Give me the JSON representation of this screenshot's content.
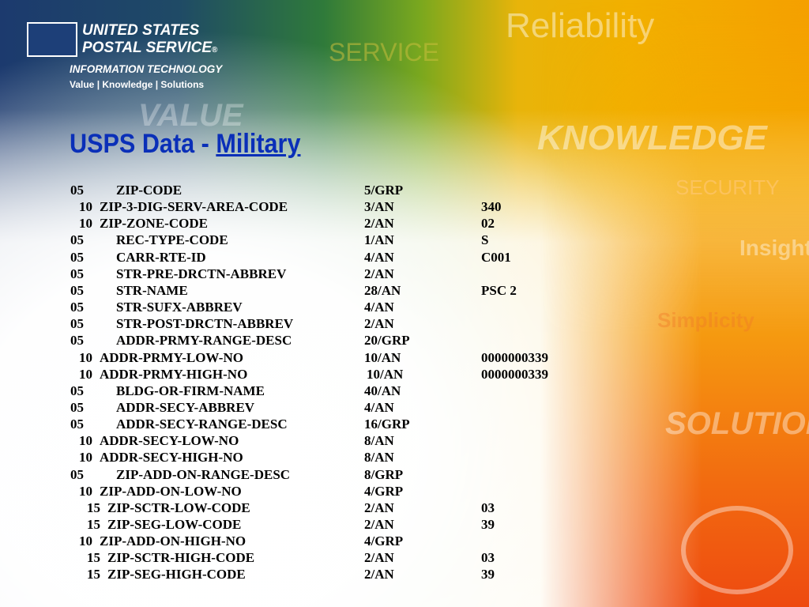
{
  "header": {
    "logo_line1": "UNITED STATES",
    "logo_line2": "POSTAL SERVICE",
    "registered_mark": "®",
    "division": "INFORMATION TECHNOLOGY",
    "tagline": "Value | Knowledge | Solutions"
  },
  "watermarks": [
    "Reliability",
    "SERVICE",
    "VALUE",
    "KNOWLEDGE",
    "SECURITY",
    "Insight",
    "Simplicity",
    "SOLUTIONS"
  ],
  "title": {
    "prefix": "USPS Data - ",
    "link": "Military"
  },
  "colors": {
    "title": "#0a2fb8",
    "text": "#000000"
  },
  "rows": [
    {
      "level": "05",
      "name": "ZIP-CODE",
      "size": "5/GRP",
      "value": ""
    },
    {
      "level": "10",
      "name": "ZIP-3-DIG-SERV-AREA-CODE",
      "size": "3/AN",
      "value": "340"
    },
    {
      "level": "10",
      "name": "ZIP-ZONE-CODE",
      "size": "2/AN",
      "value": "02"
    },
    {
      "level": "05",
      "name": "REC-TYPE-CODE",
      "size": "1/AN",
      "value": "S"
    },
    {
      "level": "05",
      "name": "CARR-RTE-ID",
      "size": "4/AN",
      "value": "C001"
    },
    {
      "level": "05",
      "name": "STR-PRE-DRCTN-ABBREV",
      "size": "2/AN",
      "value": ""
    },
    {
      "level": "05",
      "name": "STR-NAME",
      "size": "28/AN",
      "value": "PSC 2"
    },
    {
      "level": "05",
      "name": "STR-SUFX-ABBREV",
      "size": "4/AN",
      "value": ""
    },
    {
      "level": "05",
      "name": "STR-POST-DRCTN-ABBREV",
      "size": "2/AN",
      "value": ""
    },
    {
      "level": "05",
      "name": "ADDR-PRMY-RANGE-DESC",
      "size": "20/GRP",
      "value": ""
    },
    {
      "level": "10",
      "name": "ADDR-PRMY-LOW-NO",
      "size": "10/AN",
      "value": "0000000339"
    },
    {
      "level": "10",
      "name": "ADDR-PRMY-HIGH-NO",
      "size": "10/AN",
      "value": "0000000339"
    },
    {
      "level": "05",
      "name": "BLDG-OR-FIRM-NAME",
      "size": "40/AN",
      "value": ""
    },
    {
      "level": "05",
      "name": "ADDR-SECY-ABBREV",
      "size": "4/AN",
      "value": ""
    },
    {
      "level": "05",
      "name": "ADDR-SECY-RANGE-DESC",
      "size": "16/GRP",
      "value": ""
    },
    {
      "level": "10",
      "name": "ADDR-SECY-LOW-NO",
      "size": "8/AN",
      "value": ""
    },
    {
      "level": "10",
      "name": "ADDR-SECY-HIGH-NO",
      "size": "8/AN",
      "value": ""
    },
    {
      "level": "05",
      "name": "ZIP-ADD-ON-RANGE-DESC",
      "size": "8/GRP",
      "value": ""
    },
    {
      "level": "10",
      "name": "ZIP-ADD-ON-LOW-NO",
      "size": "4/GRP",
      "value": ""
    },
    {
      "level": "15",
      "name": "ZIP-SCTR-LOW-CODE",
      "size": "2/AN",
      "value": "03"
    },
    {
      "level": "15",
      "name": "ZIP-SEG-LOW-CODE",
      "size": "2/AN",
      "value": "39"
    },
    {
      "level": "10",
      "name": "ZIP-ADD-ON-HIGH-NO",
      "size": "4/GRP",
      "value": ""
    },
    {
      "level": "15",
      "name": "ZIP-SCTR-HIGH-CODE",
      "size": "2/AN",
      "value": "03"
    },
    {
      "level": "15",
      "name": "ZIP-SEG-HIGH-CODE",
      "size": "2/AN",
      "value": "39"
    }
  ]
}
